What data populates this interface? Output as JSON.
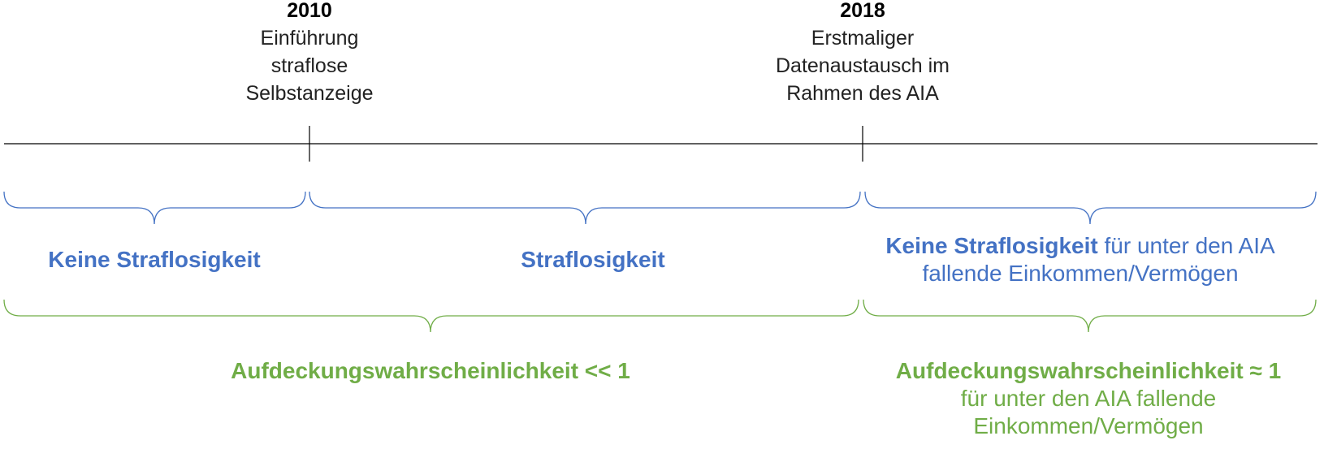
{
  "milestones": [
    {
      "year": "2010",
      "lines": [
        "Einführung",
        "straflose",
        "Selbstanzeige"
      ]
    },
    {
      "year": "2018",
      "lines": [
        "Erstmaliger",
        "Datenaustausch im",
        "Rahmen des AIA"
      ]
    }
  ],
  "punishment": {
    "left": "Keine Straflosigkeit",
    "middle": "Straflosigkeit",
    "right_bold": "Keine Straflosigkeit",
    "right_rest": "für unter den AIA",
    "right_line2": "fallende Einkommen/Vermögen"
  },
  "detection": {
    "left": "Aufdeckungswahrscheinlichkeit << 1",
    "right_bold": "Aufdeckungswahrscheinlichkeit ≈ 1",
    "right_line2": "für unter den AIA fallende",
    "right_line3": "Einkommen/Vermögen"
  },
  "colors": {
    "line": "#000000",
    "blue_brace": "#4472c4",
    "green_brace": "#70ad47",
    "blue_text": "#4472c4",
    "green_text": "#70ad47"
  }
}
